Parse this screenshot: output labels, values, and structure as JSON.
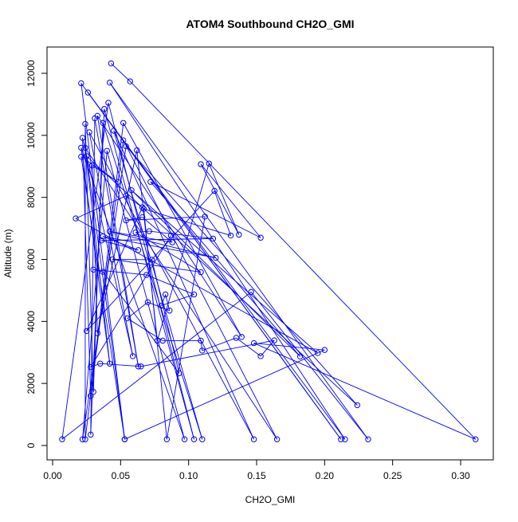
{
  "chart_data": {
    "type": "line",
    "title": "ATOM4 Southbound CH2O_GMI",
    "xlabel": "CH2O_GMI",
    "ylabel": "Altitude (m)",
    "xlim": [
      0.0,
      0.32
    ],
    "ylim": [
      0,
      12500
    ],
    "x_ticks": [
      "0.00",
      "0.05",
      "0.10",
      "0.15",
      "0.20",
      "0.25",
      "0.30"
    ],
    "y_ticks": [
      "0",
      "2000",
      "4000",
      "6000",
      "8000",
      "10000",
      "12000"
    ],
    "grid": false,
    "legend": "none",
    "marker": "open-circle",
    "series_color": "#0000ff",
    "series": [
      {
        "points": [
          [
            0.043,
            12320
          ],
          [
            0.057,
            11740
          ],
          [
            0.311,
            200
          ],
          [
            0.148,
            3300
          ],
          [
            0.2,
            3080
          ],
          [
            0.053,
            200
          ],
          [
            0.021,
            11680
          ],
          [
            0.212,
            200
          ],
          [
            0.026,
            11380
          ],
          [
            0.215,
            200
          ],
          [
            0.042,
            11700
          ],
          [
            0.232,
            200
          ],
          [
            0.146,
            4950
          ],
          [
            0.007,
            200
          ],
          [
            0.041,
            11050
          ],
          [
            0.104,
            200
          ],
          [
            0.038,
            10850
          ],
          [
            0.028,
            350
          ],
          [
            0.031,
            10550
          ],
          [
            0.063,
            2550
          ],
          [
            0.033,
            10630
          ],
          [
            0.139,
            3500
          ],
          [
            0.052,
            10400
          ],
          [
            0.024,
            200
          ],
          [
            0.024,
            10370
          ],
          [
            0.03,
            1730
          ],
          [
            0.037,
            10400
          ],
          [
            0.11,
            200
          ],
          [
            0.045,
            10150
          ],
          [
            0.148,
            200
          ],
          [
            0.027,
            10100
          ],
          [
            0.059,
            2880
          ],
          [
            0.022,
            9920
          ],
          [
            0.028,
            1600
          ],
          [
            0.052,
            9840
          ],
          [
            0.165,
            200
          ],
          [
            0.024,
            9600
          ],
          [
            0.042,
            2640
          ],
          [
            0.021,
            9600
          ],
          [
            0.097,
            200
          ],
          [
            0.04,
            9500
          ],
          [
            0.022,
            200
          ],
          [
            0.054,
            9650
          ],
          [
            0.224,
            1300
          ],
          [
            0.025,
            9330
          ],
          [
            0.053,
            200
          ],
          [
            0.021,
            9310
          ],
          [
            0.048,
            8500
          ],
          [
            0.029,
            9030
          ],
          [
            0.033,
            3620
          ],
          [
            0.062,
            9520
          ],
          [
            0.077,
            3380
          ],
          [
            0.115,
            9090
          ],
          [
            0.137,
            6800
          ],
          [
            0.109,
            9070
          ],
          [
            0.153,
            6700
          ],
          [
            0.072,
            8500
          ],
          [
            0.182,
            2870
          ],
          [
            0.058,
            8230
          ],
          [
            0.195,
            2980
          ],
          [
            0.017,
            7320
          ],
          [
            0.054,
            8050
          ],
          [
            0.066,
            7680
          ],
          [
            0.025,
            3690
          ],
          [
            0.119,
            8210
          ],
          [
            0.131,
            6770
          ],
          [
            0.067,
            7630
          ],
          [
            0.084,
            200
          ],
          [
            0.112,
            7380
          ],
          [
            0.054,
            7260
          ],
          [
            0.066,
            7360
          ],
          [
            0.088,
            6550
          ],
          [
            0.042,
            6900
          ],
          [
            0.12,
            6050
          ],
          [
            0.037,
            6740
          ],
          [
            0.063,
            6300
          ],
          [
            0.036,
            6610
          ],
          [
            0.118,
            6670
          ],
          [
            0.071,
            6910
          ],
          [
            0.061,
            6870
          ],
          [
            0.109,
            5590
          ],
          [
            0.044,
            6000
          ],
          [
            0.073,
            5990
          ],
          [
            0.093,
            2330
          ],
          [
            0.037,
            5600
          ],
          [
            0.03,
            5670
          ],
          [
            0.069,
            5500
          ],
          [
            0.104,
            4870
          ],
          [
            0.08,
            4510
          ],
          [
            0.083,
            4870
          ],
          [
            0.086,
            4350
          ],
          [
            0.07,
            4620
          ],
          [
            0.055,
            4100
          ],
          [
            0.081,
            3380
          ],
          [
            0.109,
            3380
          ],
          [
            0.11,
            3060
          ],
          [
            0.135,
            3470
          ],
          [
            0.153,
            2880
          ],
          [
            0.163,
            3390
          ],
          [
            0.065,
            2550
          ],
          [
            0.035,
            2640
          ],
          [
            0.028,
            2530
          ],
          [
            0.087,
            6770
          ]
        ]
      }
    ]
  }
}
